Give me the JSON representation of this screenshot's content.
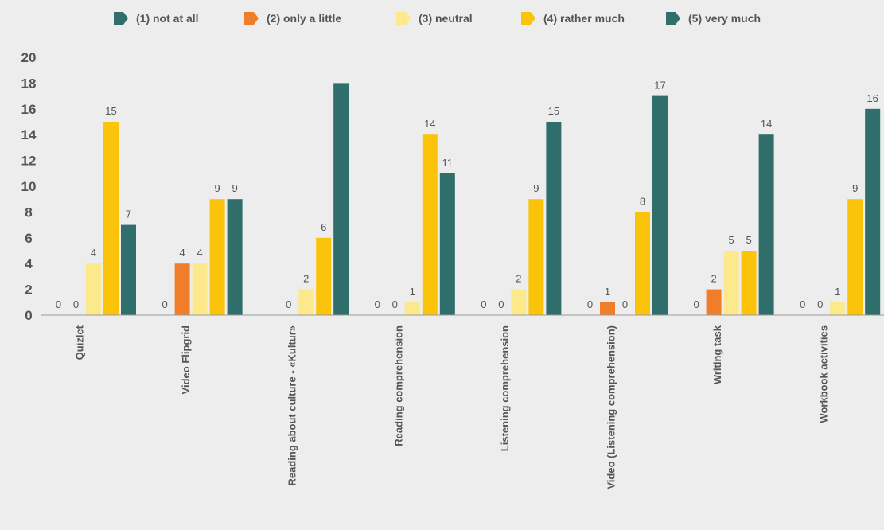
{
  "chart_data": {
    "type": "bar",
    "title": "",
    "xlabel": "",
    "ylabel": "",
    "ylim": [
      0,
      20
    ],
    "yticks": [
      0,
      2,
      4,
      6,
      8,
      10,
      12,
      14,
      16,
      18,
      20
    ],
    "grid": false,
    "legend_position": "top",
    "categories": [
      "Quizlet",
      "Video Flipgrid",
      "Reading about culture - «Kultur»",
      "Reading comprehension",
      "Listening  comprehension",
      "Video (Listening comprehension)",
      "Writing task",
      "Workbook activities"
    ],
    "series": [
      {
        "name": "(1) not at all",
        "color": "#2f6e6a",
        "values": [
          0,
          0,
          0,
          0,
          0,
          0,
          0,
          0
        ]
      },
      {
        "name": "(2) only a little",
        "color": "#ef7d29",
        "values": [
          0,
          4,
          0,
          0,
          0,
          1,
          2,
          0
        ]
      },
      {
        "name": "(3) neutral",
        "color": "#fbe98c",
        "values": [
          4,
          4,
          2,
          1,
          2,
          0,
          5,
          1
        ]
      },
      {
        "name": "(4) rather much",
        "color": "#fbc40a",
        "values": [
          15,
          9,
          6,
          14,
          9,
          8,
          5,
          9
        ]
      },
      {
        "name": "(5) very much",
        "color": "#2f6e6a",
        "values": [
          7,
          9,
          18,
          11,
          15,
          17,
          14,
          16
        ]
      }
    ],
    "data_labels": [
      [
        "0",
        "0",
        "",
        "0",
        "0",
        "0",
        "0",
        "0"
      ],
      [
        "0",
        "4",
        "0",
        "0",
        "0",
        "1",
        "2",
        "0"
      ],
      [
        "4",
        "4",
        "2",
        "1",
        "2",
        "0",
        "5",
        "1"
      ],
      [
        "15",
        "9",
        "6",
        "14",
        "9",
        "8",
        "5",
        "9"
      ],
      [
        "7",
        "9",
        "",
        "11",
        "15",
        "17",
        "14",
        "16"
      ]
    ]
  }
}
